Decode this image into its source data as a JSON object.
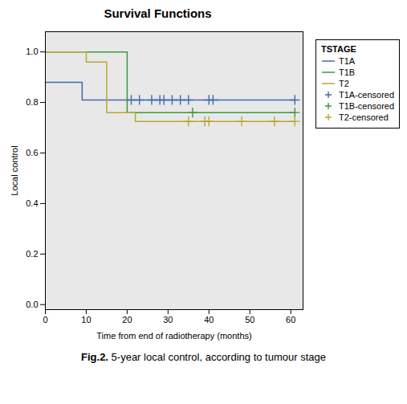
{
  "chart_data": {
    "type": "step",
    "title": "Survival Functions",
    "xlabel": "Time from end of radiotherapy (months)",
    "ylabel": "Local control",
    "caption": [
      "Fig.2.",
      " 5-year local control, according to tumour stage"
    ],
    "xlim": [
      0,
      63
    ],
    "ylim": [
      -0.02,
      1.08
    ],
    "xticks": [
      0,
      10,
      20,
      30,
      40,
      50,
      60
    ],
    "yticks": [
      {
        "value": 0.0,
        "label": "0.0"
      },
      0.2,
      0.4,
      0.6,
      0.8,
      {
        "value": 1.0,
        "label": "1.0"
      }
    ],
    "grid": false,
    "background_color": "#e8e8e8",
    "legend": "right",
    "legend_title": "TSTAGE",
    "series": [
      {
        "name": "T1A",
        "type": "step",
        "color": "#4169B0",
        "x": [
          0,
          9,
          9,
          13,
          13,
          61
        ],
        "values": [
          0.88,
          0.88,
          0.81,
          0.81,
          0.81,
          0.81
        ]
      },
      {
        "name": "T1B",
        "type": "step",
        "color": "#3a9a3a",
        "x": [
          0,
          20,
          20,
          36,
          36,
          61
        ],
        "values": [
          1.0,
          1.0,
          0.76,
          0.76,
          0.76,
          0.76
        ]
      },
      {
        "name": "T2",
        "type": "step",
        "color": "#b8a830",
        "x": [
          0,
          10,
          10,
          15,
          15,
          22,
          22,
          61
        ],
        "values": [
          1.0,
          1.0,
          0.96,
          0.96,
          0.76,
          0.76,
          0.725,
          0.725
        ]
      },
      {
        "name": "T1A-censored",
        "type": "scatter",
        "marker": "plus",
        "color": "#4169B0",
        "x": [
          21,
          23,
          26,
          28,
          29,
          31,
          33,
          35,
          40,
          41,
          61
        ],
        "values": [
          0.81,
          0.81,
          0.81,
          0.81,
          0.81,
          0.81,
          0.81,
          0.81,
          0.81,
          0.81,
          0.81
        ]
      },
      {
        "name": "T1B-censored",
        "type": "scatter",
        "marker": "plus",
        "color": "#3a9a3a",
        "x": [
          36,
          61
        ],
        "values": [
          0.76,
          0.76
        ]
      },
      {
        "name": "T2-censored",
        "type": "scatter",
        "marker": "plus",
        "color": "#b8a830",
        "x": [
          35,
          39,
          40,
          48,
          56,
          61
        ],
        "values": [
          0.725,
          0.725,
          0.725,
          0.725,
          0.725,
          0.725
        ]
      }
    ]
  }
}
